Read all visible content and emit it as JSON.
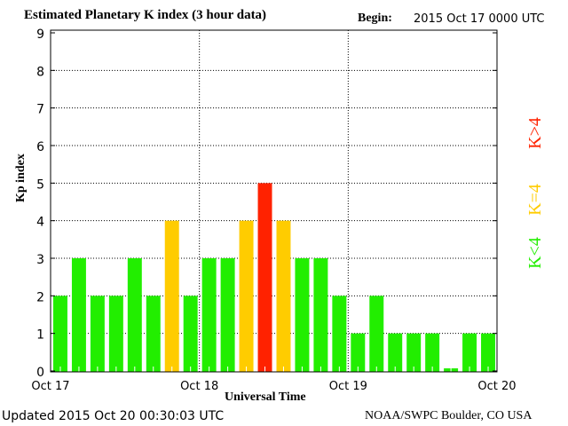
{
  "chart_data": {
    "type": "bar",
    "title": "Estimated Planetary K index (3 hour data)",
    "begin_label": "Begin:",
    "begin_value": "2015 Oct 17 0000 UTC",
    "xlabel": "Universal Time",
    "ylabel": "Kp index",
    "ylim": [
      0,
      9
    ],
    "yticks": [
      "0",
      "1",
      "2",
      "3",
      "4",
      "5",
      "6",
      "7",
      "8",
      "9"
    ],
    "xticks": [
      "Oct 17",
      "Oct 18",
      "Oct 19",
      "Oct 20"
    ],
    "grid": true,
    "values": [
      2,
      3,
      2,
      2,
      3,
      2,
      4,
      2,
      3,
      3,
      4,
      5,
      4,
      3,
      3,
      2,
      1,
      2,
      1,
      1,
      1,
      0.07,
      1,
      1
    ],
    "legend": [
      {
        "label": "K<4",
        "color": "#22ee00"
      },
      {
        "label": "K=4",
        "color": "#ffcc00"
      },
      {
        "label": "K>4",
        "color": "#ff2200"
      }
    ]
  },
  "footer": {
    "updated": "Updated 2015 Oct 20 00:30:03 UTC",
    "credit": "NOAA/SWPC Boulder, CO USA"
  }
}
